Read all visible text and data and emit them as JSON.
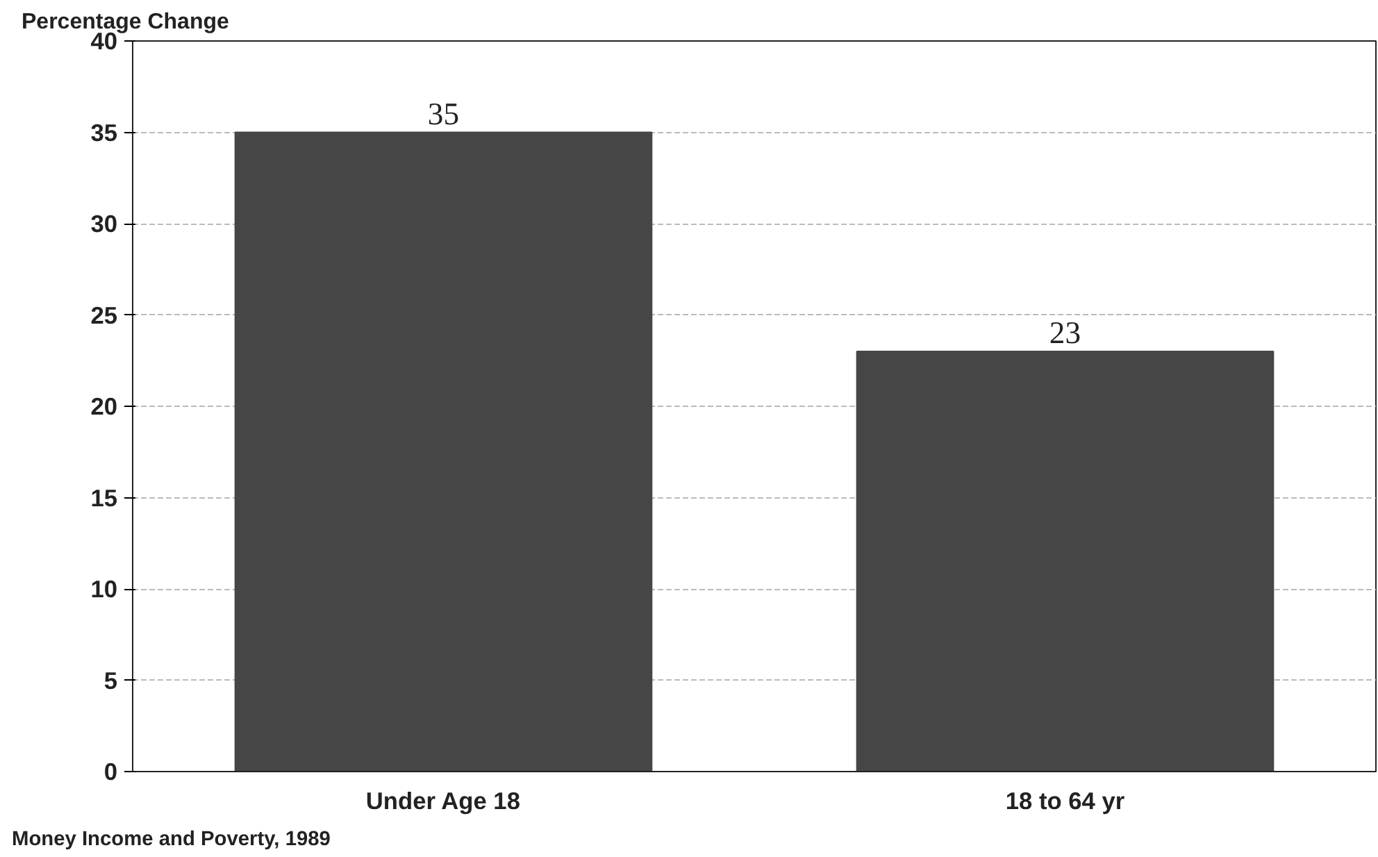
{
  "chart_data": {
    "type": "bar",
    "ylabel": "Percentage Change",
    "categories": [
      "Under Age 18",
      "18 to 64 yr"
    ],
    "values": [
      35,
      23
    ],
    "color": "#464646",
    "ylim": [
      0,
      40
    ],
    "yticks": [
      0,
      5,
      10,
      15,
      20,
      25,
      30,
      35,
      40
    ],
    "grid": "y",
    "data_labels": true,
    "annotations": [
      "Money Income and Poverty, 1989"
    ]
  }
}
